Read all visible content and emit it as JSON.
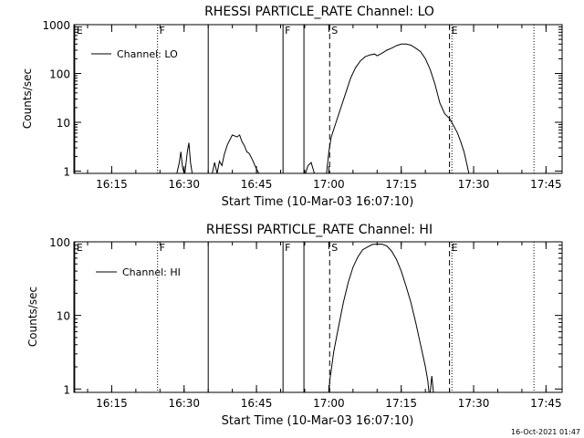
{
  "footer": {
    "timestamp": "16-Oct-2021 01:47"
  },
  "chart_data": [
    {
      "type": "line",
      "title": "RHESSI PARTICLE_RATE Channel: LO",
      "xlabel": "Start Time (10-Mar-03 16:07:10)",
      "ylabel": "Counts/sec",
      "yscale": "log",
      "xlim": [
        "16:07:10",
        "17:48:20"
      ],
      "ylim": [
        0.9,
        1000
      ],
      "xticks": [
        "16:15",
        "16:30",
        "16:45",
        "17:00",
        "17:15",
        "17:30",
        "17:45"
      ],
      "yticks": [
        "1",
        "10",
        "100",
        "1000"
      ],
      "legend": {
        "placement": "top-left",
        "entries": [
          "Channel: LO"
        ]
      },
      "markers": [
        {
          "label": "E",
          "time": "16:07:20",
          "style": "solid"
        },
        {
          "label": "F",
          "time": "16:24:30",
          "style": "dotted"
        },
        {
          "label": "",
          "time": "16:35:00",
          "style": "solid"
        },
        {
          "label": "F",
          "time": "16:50:30",
          "style": "solid"
        },
        {
          "label": "",
          "time": "16:54:50",
          "style": "solid"
        },
        {
          "label": "S",
          "time": "17:00:10",
          "style": "dashed"
        },
        {
          "label": "E",
          "time": "17:25:00",
          "style": "dashed"
        },
        {
          "label": "",
          "time": "17:25:30",
          "style": "dotted"
        },
        {
          "label": "",
          "time": "17:42:30",
          "style": "dotted"
        }
      ],
      "series": [
        {
          "segments": [
            [
              [
                "16:28:30",
                0.9
              ],
              [
                "16:29:00",
                1.5
              ],
              [
                "16:29:20",
                2.5
              ],
              [
                "16:29:40",
                1.2
              ],
              [
                "16:30:00",
                0.9
              ]
            ],
            [
              [
                "16:30:10",
                0.9
              ],
              [
                "16:30:40",
                2.5
              ],
              [
                "16:31:00",
                3.8
              ],
              [
                "16:31:20",
                1.5
              ],
              [
                "16:31:40",
                0.9
              ]
            ],
            [
              [
                "16:35:50",
                0.9
              ],
              [
                "16:36:20",
                1.5
              ],
              [
                "16:36:50",
                0.9
              ],
              [
                "16:37:20",
                1.6
              ],
              [
                "16:37:50",
                1.3
              ],
              [
                "16:38:20",
                2.2
              ],
              [
                "16:39:00",
                3.5
              ],
              [
                "16:40:00",
                5.5
              ],
              [
                "16:41:00",
                5.0
              ],
              [
                "16:41:30",
                5.5
              ],
              [
                "16:42:00",
                4.0
              ],
              [
                "16:42:30",
                3.3
              ],
              [
                "16:43:00",
                2.5
              ],
              [
                "16:43:30",
                2.3
              ],
              [
                "16:44:10",
                1.7
              ],
              [
                "16:45:00",
                1.1
              ],
              [
                "16:45:30",
                0.9
              ]
            ],
            [
              [
                "16:55:10",
                0.9
              ],
              [
                "16:55:40",
                1.3
              ],
              [
                "16:56:20",
                1.5
              ],
              [
                "16:57:00",
                0.9
              ]
            ],
            [
              [
                "16:59:30",
                0.9
              ],
              [
                "17:00:00",
                2.5
              ],
              [
                "17:00:30",
                5
              ],
              [
                "17:01:30",
                10
              ],
              [
                "17:02:30",
                20
              ],
              [
                "17:03:30",
                40
              ],
              [
                "17:04:30",
                80
              ],
              [
                "17:05:30",
                130
              ],
              [
                "17:06:30",
                180
              ],
              [
                "17:07:30",
                220
              ],
              [
                "17:08:30",
                240
              ],
              [
                "17:09:30",
                250
              ],
              [
                "17:10:00",
                230
              ],
              [
                "17:11:00",
                260
              ],
              [
                "17:12:00",
                300
              ],
              [
                "17:13:00",
                330
              ],
              [
                "17:14:00",
                370
              ],
              [
                "17:15:00",
                400
              ],
              [
                "17:16:00",
                400
              ],
              [
                "17:17:00",
                380
              ],
              [
                "17:18:00",
                330
              ],
              [
                "17:19:00",
                280
              ],
              [
                "17:20:00",
                200
              ],
              [
                "17:21:00",
                120
              ],
              [
                "17:22:00",
                60
              ],
              [
                "17:23:00",
                25
              ],
              [
                "17:24:00",
                15
              ],
              [
                "17:25:00",
                12
              ],
              [
                "17:26:00",
                8
              ],
              [
                "17:26:40",
                6
              ],
              [
                "17:27:20",
                4
              ],
              [
                "17:28:00",
                2.5
              ],
              [
                "17:28:40",
                1.3
              ],
              [
                "17:29:00",
                0.9
              ]
            ]
          ]
        }
      ]
    },
    {
      "type": "line",
      "title": "RHESSI PARTICLE_RATE Channel: HI",
      "xlabel": "Start Time (10-Mar-03 16:07:10)",
      "ylabel": "Counts/sec",
      "yscale": "log",
      "xlim": [
        "16:07:10",
        "17:48:20"
      ],
      "ylim": [
        0.9,
        100
      ],
      "xticks": [
        "16:15",
        "16:30",
        "16:45",
        "17:00",
        "17:15",
        "17:30",
        "17:45"
      ],
      "yticks": [
        "1",
        "10",
        "100"
      ],
      "legend": {
        "placement": "top-left",
        "entries": [
          "Channel: HI"
        ]
      },
      "markers": [
        {
          "label": "E",
          "time": "16:07:20",
          "style": "solid"
        },
        {
          "label": "F",
          "time": "16:24:30",
          "style": "dotted"
        },
        {
          "label": "",
          "time": "16:35:00",
          "style": "solid"
        },
        {
          "label": "F",
          "time": "16:50:30",
          "style": "solid"
        },
        {
          "label": "",
          "time": "16:54:50",
          "style": "solid"
        },
        {
          "label": "S",
          "time": "17:00:10",
          "style": "dashed"
        },
        {
          "label": "E",
          "time": "17:25:00",
          "style": "dashed"
        },
        {
          "label": "",
          "time": "17:25:30",
          "style": "dotted"
        },
        {
          "label": "",
          "time": "17:42:30",
          "style": "dotted"
        }
      ],
      "series": [
        {
          "segments": [
            [
              [
                "17:00:00",
                0.9
              ],
              [
                "17:00:15",
                1.4
              ],
              [
                "17:00:30",
                1.8
              ],
              [
                "17:01:00",
                3.2
              ],
              [
                "17:02:00",
                7
              ],
              [
                "17:03:00",
                15
              ],
              [
                "17:04:00",
                28
              ],
              [
                "17:05:00",
                45
              ],
              [
                "17:06:00",
                62
              ],
              [
                "17:07:00",
                78
              ],
              [
                "17:08:00",
                85
              ],
              [
                "17:09:00",
                92
              ],
              [
                "17:10:00",
                93
              ],
              [
                "17:11:00",
                93
              ],
              [
                "17:12:00",
                88
              ],
              [
                "17:13:00",
                75
              ],
              [
                "17:14:00",
                58
              ],
              [
                "17:15:00",
                40
              ],
              [
                "17:16:00",
                25
              ],
              [
                "17:17:00",
                15
              ],
              [
                "17:18:00",
                8
              ],
              [
                "17:19:00",
                4
              ],
              [
                "17:20:00",
                2
              ],
              [
                "17:20:30",
                1.3
              ],
              [
                "17:20:45",
                0.9
              ]
            ],
            [
              [
                "17:21:00",
                0.9
              ],
              [
                "17:21:20",
                1.5
              ],
              [
                "17:21:40",
                0.9
              ]
            ]
          ]
        }
      ]
    }
  ]
}
